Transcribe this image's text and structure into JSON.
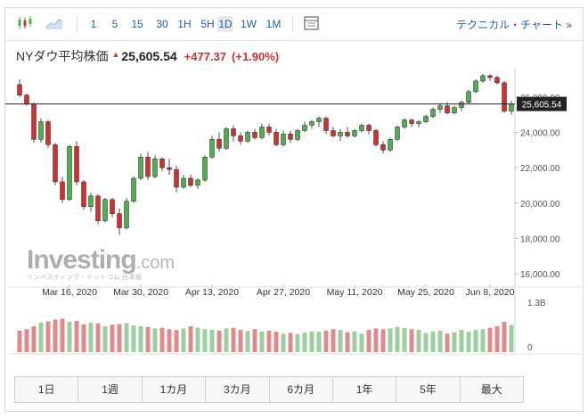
{
  "toolbar": {
    "timeframes": [
      "1",
      "5",
      "15",
      "30",
      "1H",
      "5H",
      "1D",
      "1W",
      "1M"
    ],
    "active_timeframe": "1D",
    "technical_link": "テクニカル・チャート »"
  },
  "header": {
    "name": "NYダウ平均株価",
    "price": "25,605.54",
    "change": "+477.37",
    "change_pct": "(+1.90%)"
  },
  "logo": {
    "main": "Investing",
    "dom": ".com",
    "sub": "インベスティング・ドットコム 日本版"
  },
  "periods": [
    "1日",
    "1週",
    "1カ月",
    "3カ月",
    "6カ月",
    "1年",
    "5年",
    "最大"
  ],
  "colors": {
    "up": "#4caf50",
    "down": "#d32f2f",
    "up_vol": "#9ccf9f",
    "down_vol": "#e0898c"
  },
  "chart_data": {
    "type": "candlestick",
    "ylim": [
      15400,
      27400
    ],
    "y_ticks": [
      16000,
      18000,
      20000,
      22000,
      24000,
      26000
    ],
    "y_tick_labels": [
      "16,000.00",
      "18,000.00",
      "20,000.00",
      "22,000.00",
      "24,000.00",
      "26,000.00"
    ],
    "x_tick_labels": [
      {
        "label": "Mar 16, 2020",
        "index": 7
      },
      {
        "label": "Mar 30, 2020",
        "index": 17
      },
      {
        "label": "Apr 13, 2020",
        "index": 27
      },
      {
        "label": "Apr 27, 2020",
        "index": 37
      },
      {
        "label": "May 11, 2020",
        "index": 47
      },
      {
        "label": "May 25, 2020",
        "index": 57
      },
      {
        "label": "Jun 8, 2020",
        "index": 66
      }
    ],
    "current_price": 25605.54,
    "current_price_label": "25,605.54",
    "volume_label": "1.3B",
    "volume_zero_label": "0",
    "volume_max": 1.3,
    "candles": [
      [
        26700,
        27000,
        26000,
        26100
      ],
      [
        26100,
        26200,
        25500,
        25600
      ],
      [
        25600,
        25700,
        23400,
        23600
      ],
      [
        23600,
        24800,
        23400,
        24600
      ],
      [
        24600,
        24700,
        23100,
        23300
      ],
      [
        23300,
        23400,
        21000,
        21200
      ],
      [
        21200,
        21500,
        20000,
        20200
      ],
      [
        20200,
        23300,
        20100,
        23200
      ],
      [
        23200,
        23500,
        21000,
        21200
      ],
      [
        21200,
        21300,
        19600,
        19800
      ],
      [
        19800,
        20600,
        19500,
        20400
      ],
      [
        20400,
        20500,
        18800,
        19000
      ],
      [
        19000,
        20300,
        18900,
        20200
      ],
      [
        20200,
        20300,
        19200,
        19400
      ],
      [
        19400,
        19700,
        18200,
        18600
      ],
      [
        18600,
        20300,
        18500,
        20100
      ],
      [
        20100,
        21500,
        20000,
        21400
      ],
      [
        21400,
        22800,
        21300,
        22600
      ],
      [
        22600,
        22900,
        21300,
        21500
      ],
      [
        21500,
        22700,
        21400,
        22500
      ],
      [
        22500,
        22600,
        21800,
        22000
      ],
      [
        22000,
        22500,
        21600,
        21900
      ],
      [
        21900,
        22100,
        20600,
        20900
      ],
      [
        20900,
        21600,
        20800,
        21400
      ],
      [
        21400,
        21600,
        20900,
        21000
      ],
      [
        21000,
        21400,
        20800,
        21300
      ],
      [
        21300,
        22700,
        21200,
        22600
      ],
      [
        22600,
        23800,
        22500,
        23600
      ],
      [
        23600,
        24000,
        22900,
        23100
      ],
      [
        23100,
        24300,
        23000,
        24200
      ],
      [
        24200,
        24400,
        23500,
        23800
      ],
      [
        23800,
        24000,
        23300,
        23500
      ],
      [
        23500,
        24100,
        23400,
        24000
      ],
      [
        24000,
        24200,
        23600,
        23700
      ],
      [
        23700,
        24500,
        23600,
        24300
      ],
      [
        24300,
        24500,
        23800,
        24000
      ],
      [
        24000,
        24200,
        23200,
        23300
      ],
      [
        23300,
        24100,
        23200,
        23900
      ],
      [
        23900,
        24100,
        23400,
        23600
      ],
      [
        23600,
        24200,
        23500,
        24100
      ],
      [
        24100,
        24600,
        24000,
        24400
      ],
      [
        24400,
        24700,
        24200,
        24600
      ],
      [
        24600,
        24900,
        24300,
        24800
      ],
      [
        24800,
        24900,
        23900,
        24100
      ],
      [
        24100,
        24300,
        23700,
        23800
      ],
      [
        23800,
        24200,
        23500,
        24000
      ],
      [
        24000,
        24300,
        23700,
        23800
      ],
      [
        23800,
        24200,
        23700,
        24100
      ],
      [
        24100,
        24500,
        24000,
        24400
      ],
      [
        24400,
        24500,
        23900,
        24100
      ],
      [
        24100,
        24200,
        23200,
        23300
      ],
      [
        23300,
        23500,
        22800,
        23000
      ],
      [
        23000,
        23700,
        22900,
        23600
      ],
      [
        23600,
        24400,
        23500,
        24300
      ],
      [
        24300,
        24800,
        24200,
        24700
      ],
      [
        24700,
        24800,
        24300,
        24500
      ],
      [
        24500,
        24700,
        24300,
        24600
      ],
      [
        24600,
        25000,
        24500,
        24900
      ],
      [
        24900,
        25400,
        24800,
        25300
      ],
      [
        25300,
        25600,
        25100,
        25500
      ],
      [
        25500,
        25700,
        25000,
        25100
      ],
      [
        25100,
        25500,
        25000,
        25400
      ],
      [
        25400,
        25800,
        25200,
        25700
      ],
      [
        25700,
        26400,
        25600,
        26300
      ],
      [
        26300,
        27000,
        26200,
        26900
      ],
      [
        26900,
        27300,
        26800,
        27200
      ],
      [
        27200,
        27300,
        26900,
        27100
      ],
      [
        27100,
        27200,
        26700,
        26800
      ],
      [
        26800,
        26900,
        25100,
        25200
      ],
      [
        25200,
        25800,
        25000,
        25605
      ]
    ],
    "volumes": [
      0.58,
      0.62,
      0.7,
      0.8,
      0.83,
      0.88,
      0.9,
      0.82,
      0.84,
      0.75,
      0.8,
      0.78,
      0.7,
      0.74,
      0.76,
      0.78,
      0.72,
      0.7,
      0.68,
      0.64,
      0.66,
      0.62,
      0.6,
      0.64,
      0.7,
      0.66,
      0.62,
      0.6,
      0.58,
      0.64,
      0.66,
      0.6,
      0.57,
      0.62,
      0.56,
      0.58,
      0.55,
      0.5,
      0.52,
      0.49,
      0.53,
      0.56,
      0.55,
      0.58,
      0.62,
      0.6,
      0.54,
      0.56,
      0.5,
      0.6,
      0.64,
      0.62,
      0.64,
      0.68,
      0.65,
      0.62,
      0.6,
      0.52,
      0.56,
      0.58,
      0.5,
      0.54,
      0.6,
      0.55,
      0.6,
      0.62,
      0.66,
      0.7,
      0.82,
      0.74
    ]
  }
}
